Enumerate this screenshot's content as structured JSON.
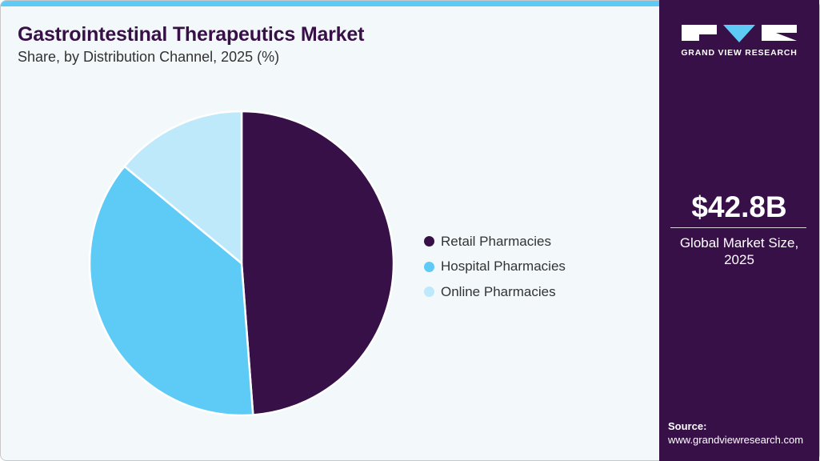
{
  "header": {
    "title": "Gastrointestinal Therapeutics Market",
    "subtitle": "Share, by Distribution Channel, 2025 (%)"
  },
  "legend": [
    {
      "label": "Retail Pharmacies",
      "color": "#381048"
    },
    {
      "label": "Hospital Pharmacies",
      "color": "#5ecbf7"
    },
    {
      "label": "Online Pharmacies",
      "color": "#bde9fa"
    }
  ],
  "sidebar": {
    "brand": "GRAND VIEW RESEARCH",
    "market_size": "$42.8B",
    "market_size_label": "Global Market Size, 2025",
    "source_label": "Source:",
    "source_url": "www.grandviewresearch.com"
  },
  "colors": {
    "accent": "#5ecbf7",
    "brand_dark": "#381048",
    "background": "#f3f8fb"
  },
  "chart_data": {
    "type": "pie",
    "title": "Gastrointestinal Therapeutics Market",
    "subtitle": "Share, by Distribution Channel, 2025 (%)",
    "categories": [
      "Retail Pharmacies",
      "Hospital Pharmacies",
      "Online Pharmacies"
    ],
    "values": [
      48.8,
      37.2,
      14.0
    ],
    "colors": [
      "#381048",
      "#5ecbf7",
      "#bde9fa"
    ],
    "start_angle_deg": 0,
    "direction": "clockwise",
    "legend_position": "right",
    "data_labels": false
  }
}
